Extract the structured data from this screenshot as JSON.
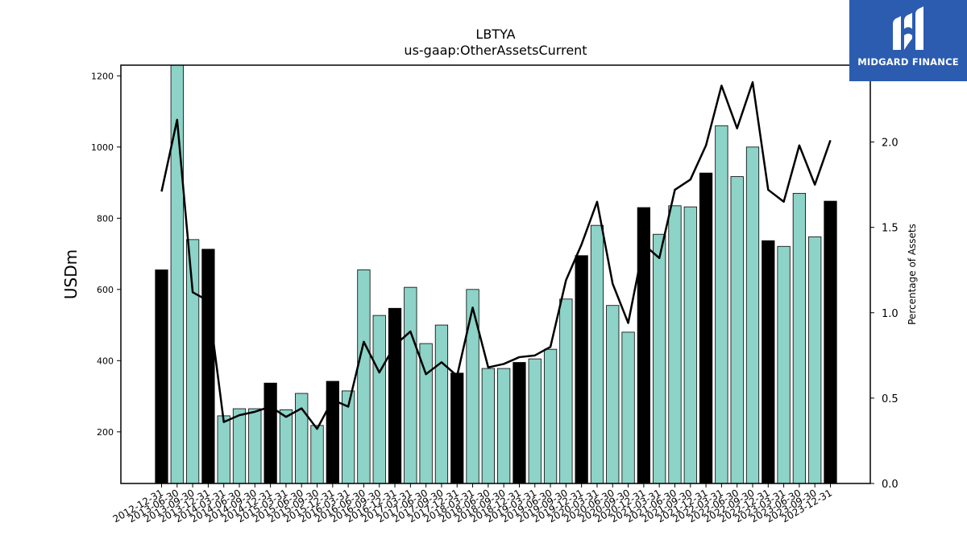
{
  "brand": {
    "name": "MIDGARD FINANCE",
    "icon": "midgard-m-logo-icon",
    "bg_color": "#2b5cb0"
  },
  "chart_data": {
    "type": "bar",
    "title": "LBTYA",
    "subtitle": "us-gaap:OtherAssetsCurrent",
    "ylabel": "USDm",
    "y2label": "Percentage of Assets",
    "ylim": [
      55,
      1230
    ],
    "y2lim": [
      0.0,
      2.45
    ],
    "yticks": [
      200,
      400,
      600,
      800,
      1000,
      1200
    ],
    "y2ticks": [
      "0.0",
      "0.5",
      "1.0",
      "1.5",
      "2.0"
    ],
    "colors": {
      "annual_bar": "#000000",
      "quarter_bar": "#8dd3c7",
      "line": "#000000"
    },
    "categories": [
      "2012-12-31",
      "2013-06-30",
      "2013-09-30",
      "2013-12-31",
      "2014-03-31",
      "2014-06-30",
      "2014-09-30",
      "2014-12-31",
      "2015-03-31",
      "2015-06-30",
      "2015-09-30",
      "2015-12-31",
      "2016-03-31",
      "2016-06-30",
      "2016-09-30",
      "2016-12-31",
      "2017-03-31",
      "2017-06-30",
      "2017-09-30",
      "2017-12-31",
      "2018-03-31",
      "2018-06-30",
      "2018-09-30",
      "2018-12-31",
      "2019-03-31",
      "2019-06-30",
      "2019-09-30",
      "2019-12-31",
      "2020-03-31",
      "2020-06-30",
      "2020-09-30",
      "2020-12-31",
      "2021-03-31",
      "2021-06-30",
      "2021-09-30",
      "2021-12-31",
      "2022-03-31",
      "2022-06-30",
      "2022-09-30",
      "2022-12-31",
      "2023-03-31",
      "2023-06-30",
      "2023-09-30",
      "2023-12-31"
    ],
    "series": [
      {
        "values": [
          655,
          1230,
          740,
          713,
          245,
          265,
          265,
          337,
          262,
          308,
          218,
          342,
          315,
          655,
          527,
          547,
          606,
          448,
          500,
          365,
          600,
          378,
          378,
          395,
          405,
          432,
          573,
          695,
          780,
          555,
          480,
          830,
          755,
          835,
          832,
          927,
          1060,
          917,
          1000,
          737,
          721,
          870,
          748,
          848
        ],
        "annual": [
          true,
          false,
          false,
          true,
          false,
          false,
          false,
          true,
          false,
          false,
          false,
          true,
          false,
          false,
          false,
          true,
          false,
          false,
          false,
          true,
          false,
          false,
          false,
          true,
          false,
          false,
          false,
          true,
          false,
          false,
          false,
          true,
          false,
          false,
          false,
          true,
          false,
          false,
          false,
          true,
          false,
          false,
          false,
          true
        ]
      },
      {
        "values": [
          1.71,
          2.13,
          1.12,
          1.07,
          0.36,
          0.4,
          0.42,
          0.45,
          0.39,
          0.44,
          0.32,
          0.49,
          0.45,
          0.83,
          0.65,
          0.81,
          0.89,
          0.64,
          0.71,
          0.63,
          1.03,
          0.68,
          0.7,
          0.74,
          0.75,
          0.8,
          1.19,
          1.4,
          1.65,
          1.17,
          0.94,
          1.4,
          1.32,
          1.72,
          1.78,
          1.98,
          2.33,
          2.08,
          2.35,
          1.72,
          1.65,
          1.98,
          1.75,
          2.01
        ]
      }
    ]
  }
}
